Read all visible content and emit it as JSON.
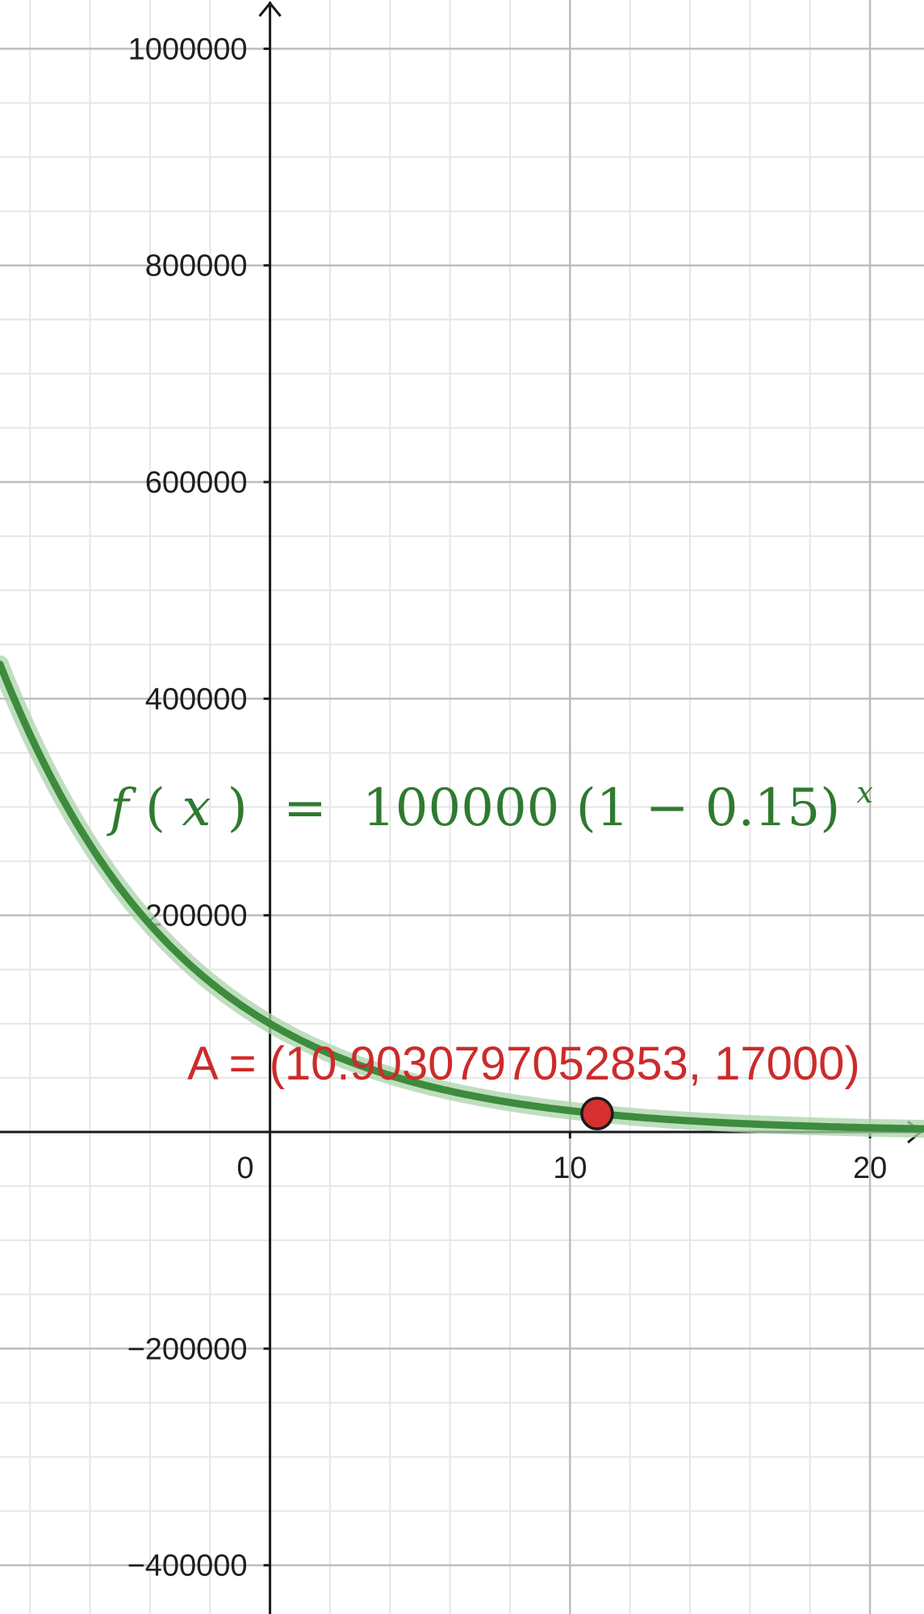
{
  "chart_data": {
    "type": "line",
    "title": "",
    "xlabel": "",
    "ylabel": "",
    "xlim": [
      -9,
      21.8
    ],
    "ylim": [
      -445000,
      1045000
    ],
    "x_ticks": [
      0,
      10,
      20
    ],
    "x_tick_labels": [
      "0",
      "10",
      "20"
    ],
    "y_ticks": [
      -400000,
      -200000,
      200000,
      400000,
      600000,
      800000,
      1000000
    ],
    "y_tick_labels": [
      "−400000",
      "−200000",
      "200000",
      "400000",
      "600000",
      "800000",
      "1000000"
    ],
    "grid": true,
    "minor_grid": true,
    "series": [
      {
        "label_parts": {
          "fname": "f",
          "lparen": "(",
          "var": "x",
          "rparen": ")",
          "eq": "=",
          "rhs": "100000 (1 − 0.15)",
          "exp": "x"
        },
        "color": "#3d8b3d",
        "halo_color": "#a9d3a9",
        "function": {
          "a": 100000,
          "base": 0.85
        },
        "domain": [
          -9,
          21.8
        ],
        "x": [
          -9,
          -8,
          -7,
          -6,
          -5,
          -4,
          -3,
          -2,
          -1,
          0,
          2,
          4,
          6,
          8,
          10,
          12,
          14,
          16,
          18,
          20,
          21.8
        ],
        "values": [
          432000,
          367000,
          312000,
          265000,
          225000,
          192000,
          163000,
          138000,
          118000,
          100000,
          72000,
          52000,
          38000,
          27000,
          20000,
          14000,
          10000,
          7000,
          5000,
          3900,
          2900
        ]
      }
    ],
    "points": [
      {
        "label": "A = (10.9030797052853, 17000)",
        "x": 10.9030797052853,
        "y": 17000,
        "color": "#d63030"
      }
    ]
  }
}
